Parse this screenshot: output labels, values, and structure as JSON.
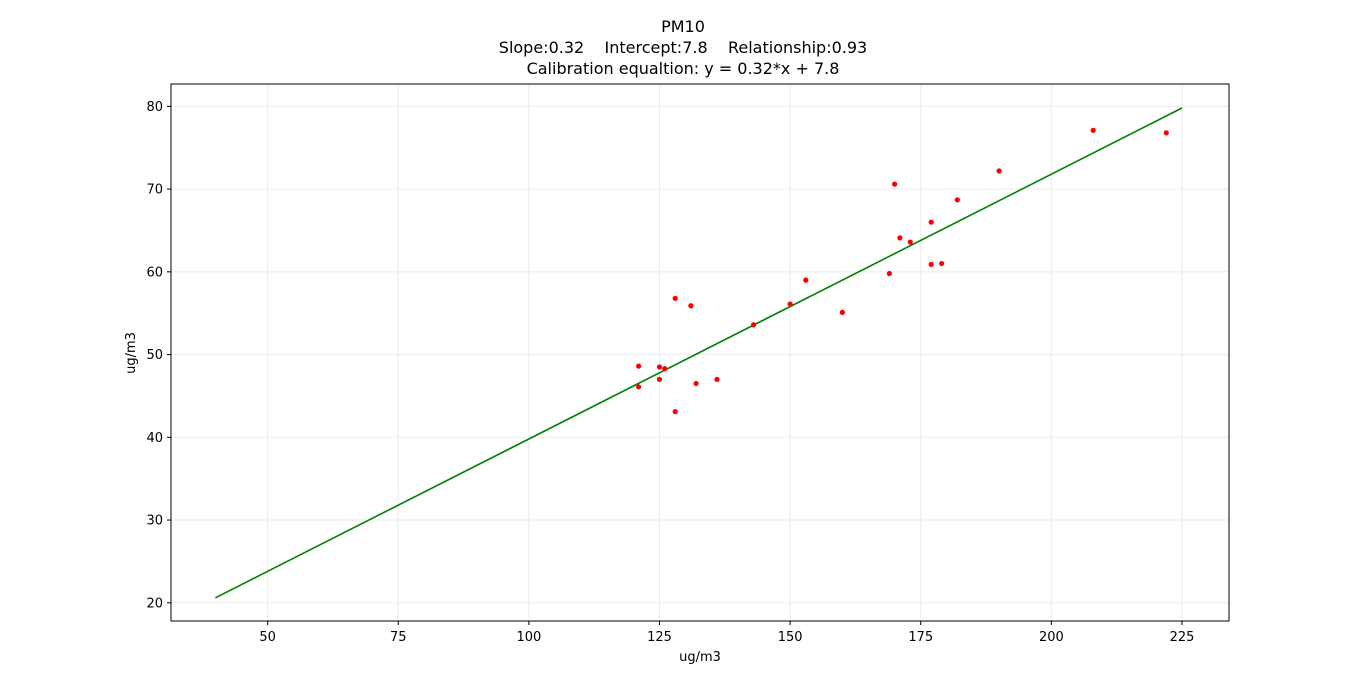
{
  "chart_data": {
    "type": "scatter",
    "title": "PM10",
    "subtitle": "Slope:0.32    Intercept:7.8    Relationship:0.93",
    "equation": "Calibration equaltion: y = 0.32*x + 7.8",
    "xlabel": "ug/m3",
    "ylabel": "ug/m3",
    "xlim": [
      31.5,
      234
    ],
    "ylim": [
      17.8,
      82.7
    ],
    "xticks": [
      50,
      75,
      100,
      125,
      150,
      175,
      200,
      225
    ],
    "yticks": [
      20,
      30,
      40,
      50,
      60,
      70,
      80
    ],
    "grid": true,
    "colors": {
      "points": "#ff0000",
      "line": "#008000",
      "grid": "#ebebeb",
      "axes": "#000000"
    },
    "series": [
      {
        "kind": "scatter",
        "points": [
          [
            121,
            48.6
          ],
          [
            121,
            46.1
          ],
          [
            125,
            48.5
          ],
          [
            125,
            47.0
          ],
          [
            126,
            48.3
          ],
          [
            128,
            56.8
          ],
          [
            128,
            43.1
          ],
          [
            131,
            55.9
          ],
          [
            132,
            46.5
          ],
          [
            136,
            47.0
          ],
          [
            143,
            53.6
          ],
          [
            150,
            56.1
          ],
          [
            153,
            59.0
          ],
          [
            160,
            55.1
          ],
          [
            169,
            59.8
          ],
          [
            170,
            70.6
          ],
          [
            171,
            64.1
          ],
          [
            173,
            63.6
          ],
          [
            177,
            66.0
          ],
          [
            177,
            60.9
          ],
          [
            179,
            61.0
          ],
          [
            182,
            68.7
          ],
          [
            190,
            72.2
          ],
          [
            208,
            77.1
          ],
          [
            222,
            76.8
          ]
        ]
      },
      {
        "kind": "line",
        "points": [
          [
            40,
            20.6
          ],
          [
            225,
            79.8
          ]
        ]
      }
    ]
  }
}
